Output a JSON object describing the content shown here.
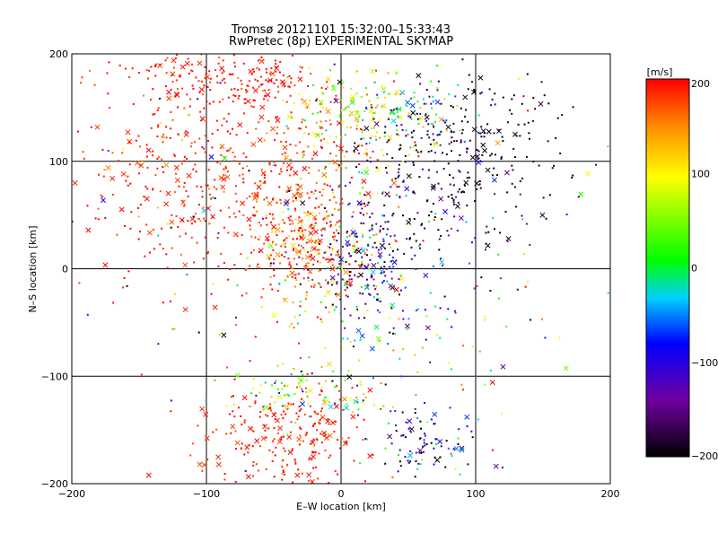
{
  "chart_data": {
    "type": "scatter",
    "title": "Tromsø 20121101 15:32:00–15:33:43",
    "subtitle": "RwPretec (8p) EXPERIMENTAL SKYMAP",
    "xlabel": "E–W location [km]",
    "ylabel": "N–S location [km]",
    "xlim": [
      -200,
      200
    ],
    "ylim": [
      -200,
      200
    ],
    "xticks": [
      -200,
      -100,
      0,
      100,
      200
    ],
    "yticks": [
      -200,
      -100,
      0,
      100,
      200
    ],
    "grid": true,
    "colorbar": {
      "label": "[m/s]",
      "min": -200,
      "max": 200,
      "ticks": [
        200,
        100,
        0,
        -100,
        -200
      ],
      "colormap": "black-purple-blue-cyan-green-yellow-orange-red"
    },
    "clusters": [
      {
        "x": -120,
        "y": 100,
        "sx": 40,
        "sy": 60,
        "v": 190,
        "sv": 15,
        "n": 300
      },
      {
        "x": -40,
        "y": 90,
        "sx": 35,
        "sy": 50,
        "v": 185,
        "sv": 20,
        "n": 260
      },
      {
        "x": -60,
        "y": 175,
        "sx": 15,
        "sy": 12,
        "v": 195,
        "sv": 8,
        "n": 80
      },
      {
        "x": -120,
        "y": 180,
        "sx": 25,
        "sy": 12,
        "v": 190,
        "sv": 10,
        "n": 60
      },
      {
        "x": -25,
        "y": 20,
        "sx": 25,
        "sy": 30,
        "v": 170,
        "sv": 60,
        "n": 260
      },
      {
        "x": 15,
        "y": 140,
        "sx": 25,
        "sy": 25,
        "v": 90,
        "sv": 60,
        "n": 160
      },
      {
        "x": 50,
        "y": 145,
        "sx": 25,
        "sy": 15,
        "v": -50,
        "sv": 80,
        "n": 80
      },
      {
        "x": 100,
        "y": 115,
        "sx": 40,
        "sy": 35,
        "v": -190,
        "sv": 10,
        "n": 200
      },
      {
        "x": 60,
        "y": 60,
        "sx": 45,
        "sy": 40,
        "v": -160,
        "sv": 60,
        "n": 140
      },
      {
        "x": 20,
        "y": 10,
        "sx": 20,
        "sy": 30,
        "v": -120,
        "sv": 80,
        "n": 180
      },
      {
        "x": -40,
        "y": -160,
        "sx": 30,
        "sy": 25,
        "v": 190,
        "sv": 15,
        "n": 240
      },
      {
        "x": -20,
        "y": -115,
        "sx": 30,
        "sy": 10,
        "v": 70,
        "sv": 60,
        "n": 90
      },
      {
        "x": 60,
        "y": -165,
        "sx": 20,
        "sy": 20,
        "v": -120,
        "sv": 80,
        "n": 100
      },
      {
        "x": 40,
        "y": -60,
        "sx": 40,
        "sy": 40,
        "v": 0,
        "sv": 120,
        "n": 60
      },
      {
        "x": 0,
        "y": 0,
        "sx": 110,
        "sy": 110,
        "v": 0,
        "sv": 160,
        "n": 220
      }
    ]
  }
}
